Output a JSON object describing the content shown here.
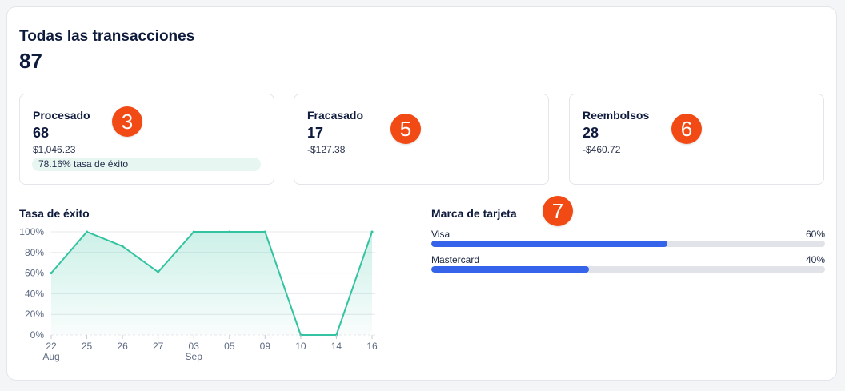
{
  "header": {
    "title": "Todas las transacciones",
    "total": "87"
  },
  "cards": [
    {
      "label": "Procesado",
      "count": "68",
      "amount": "$1,046.23",
      "success_text": "78.16% tasa de éxito",
      "badge": "3"
    },
    {
      "label": "Fracasado",
      "count": "17",
      "amount": "-$127.38",
      "badge": "5"
    },
    {
      "label": "Reembolsos",
      "count": "28",
      "amount": "-$460.72",
      "badge": "6"
    }
  ],
  "success_chart": {
    "title": "Tasa de éxito",
    "chart_data": {
      "type": "area",
      "categories": [
        "22",
        "25",
        "26",
        "27",
        "03",
        "05",
        "09",
        "10",
        "14",
        "16"
      ],
      "category_sublabels": [
        "Aug",
        "",
        "",
        "",
        "Sep",
        "",
        "",
        "",
        "",
        ""
      ],
      "values": [
        60,
        100,
        86,
        61,
        100,
        100,
        100,
        0,
        0,
        100
      ],
      "y_ticks": [
        "0%",
        "20%",
        "40%",
        "60%",
        "80%",
        "100%"
      ],
      "ylim": [
        0,
        100
      ],
      "grid": true,
      "line_color": "#34c3a0",
      "fill_color": "#34c3a0"
    }
  },
  "card_brand": {
    "title": "Marca de tarjeta",
    "badge": "7",
    "items": [
      {
        "name": "Visa",
        "percent_label": "60%",
        "fraction": 0.6
      },
      {
        "name": "Mastercard",
        "percent_label": "40%",
        "fraction": 0.4
      }
    ],
    "bar_color": "#3563e9",
    "track_color": "#e1e3e8"
  },
  "colors": {
    "badge": "#f24a15",
    "pill_bg": "#e8f6f2"
  }
}
